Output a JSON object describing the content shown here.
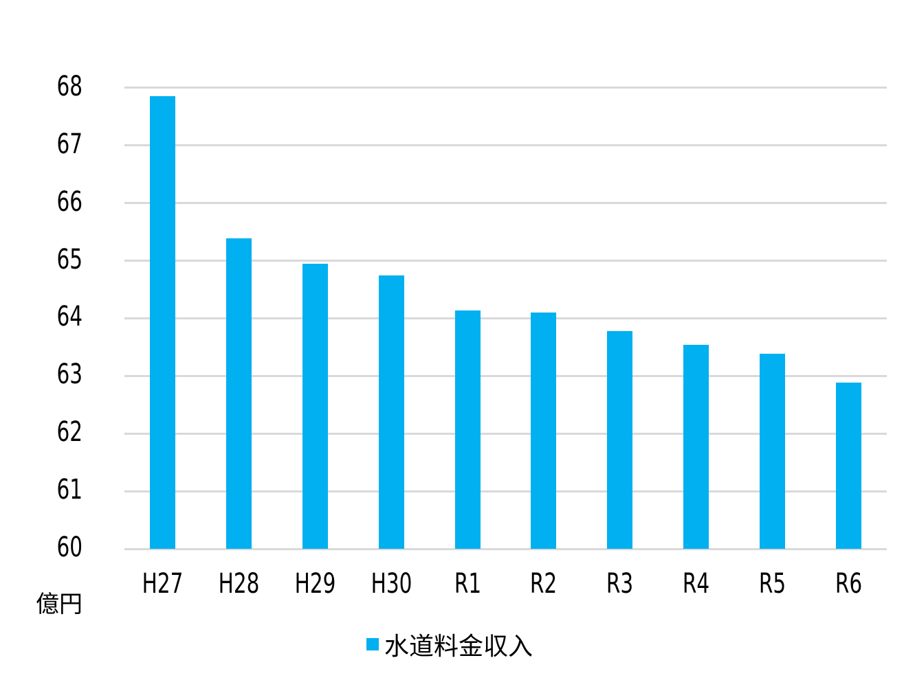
{
  "chart_data": {
    "type": "bar",
    "title": "",
    "categories": [
      "H27",
      "H28",
      "H29",
      "H30",
      "R1",
      "R2",
      "R3",
      "R4",
      "R5",
      "R6"
    ],
    "series": [
      {
        "name": "水道料金収入",
        "color": "#00b0f0",
        "values": [
          67.85,
          65.39,
          64.95,
          64.74,
          64.13,
          64.1,
          63.78,
          63.54,
          63.38,
          62.88
        ]
      }
    ],
    "xlabel": "",
    "ylabel": "億円",
    "ylim": [
      60,
      68
    ],
    "yticks": [
      "60",
      "61",
      "62",
      "63",
      "64",
      "65",
      "66",
      "67",
      "68"
    ],
    "grid": true,
    "legend_position": "bottom"
  },
  "axis": {
    "unit_label": "億円"
  },
  "legend": {
    "label": "水道料金収入"
  }
}
